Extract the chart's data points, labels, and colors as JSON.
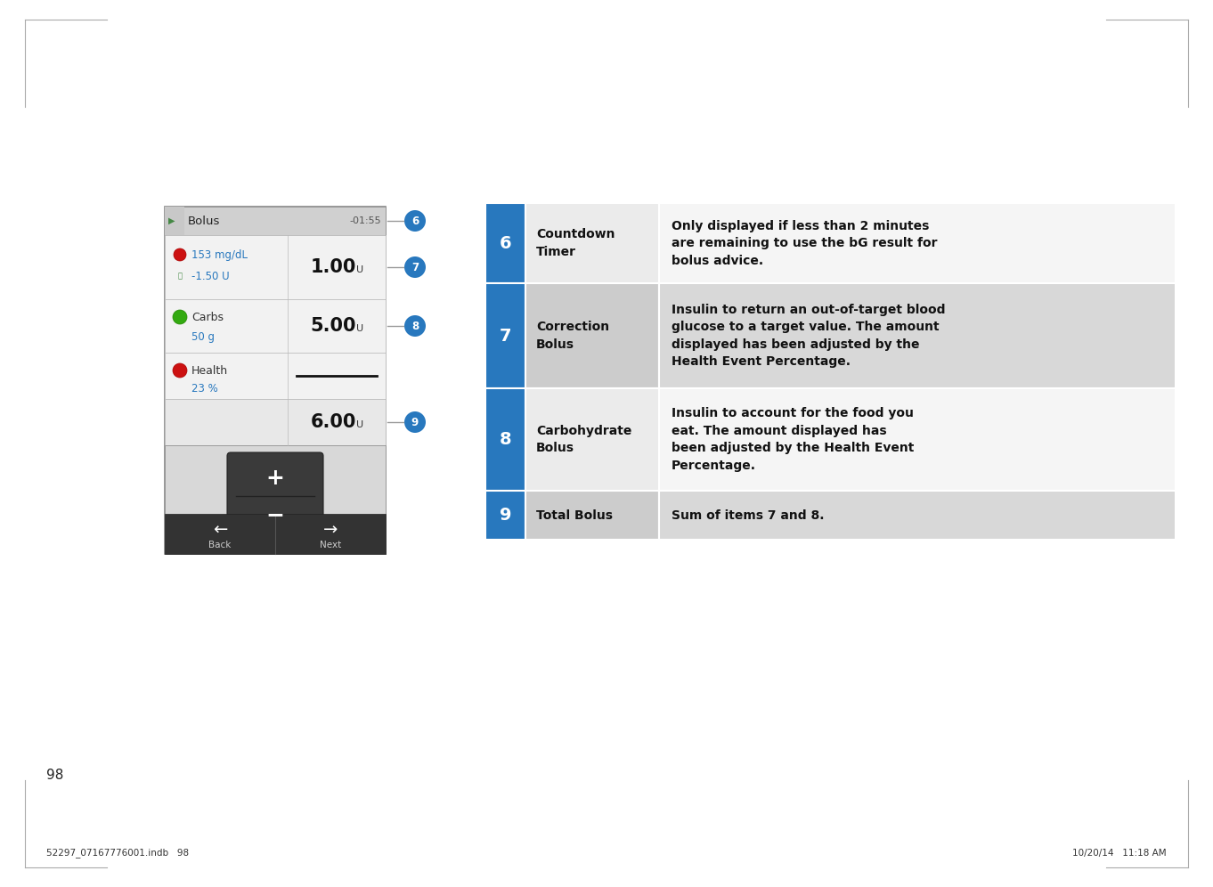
{
  "page_number": "98",
  "footer_left": "52297_07167776001.indb   98",
  "footer_right": "10/20/14   11:18 AM",
  "table": {
    "rows": [
      {
        "num": "6",
        "label": "Countdown\nTimer",
        "description": "Only displayed if less than 2 minutes\nare remaining to use the bG result for\nbolus advice.",
        "bg_label": "#ebebeb",
        "bg_desc": "#f5f5f5"
      },
      {
        "num": "7",
        "label": "Correction\nBolus",
        "description": "Insulin to return an out-of-target blood\nglucose to a target value. The amount\ndisplayed has been adjusted by the\nHealth Event Percentage.",
        "bg_label": "#cccccc",
        "bg_desc": "#d8d8d8"
      },
      {
        "num": "8",
        "label": "Carbohydrate\nBolus",
        "description": "Insulin to account for the food you\neat. The amount displayed has\nbeen adjusted by the Health Event\nPercentage.",
        "bg_label": "#ebebeb",
        "bg_desc": "#f5f5f5"
      },
      {
        "num": "9",
        "label": "Total Bolus",
        "description": "Sum of items 7 and 8.",
        "bg_label": "#cccccc",
        "bg_desc": "#d8d8d8"
      }
    ]
  },
  "blue_color": "#2878be",
  "circle_color": "#2878be",
  "device_screen": {
    "title": "Bolus",
    "timer": "-01:55",
    "row1_left1": "153 mg/dL",
    "row1_left2": "-1.50 U",
    "row1_right": "1.00",
    "row2_left1": "Carbs",
    "row2_left2": "50 g",
    "row2_right": "5.00",
    "row3_left1": "Health",
    "row3_left2": "23 %",
    "row4_right": "6.00",
    "unit": "U"
  }
}
